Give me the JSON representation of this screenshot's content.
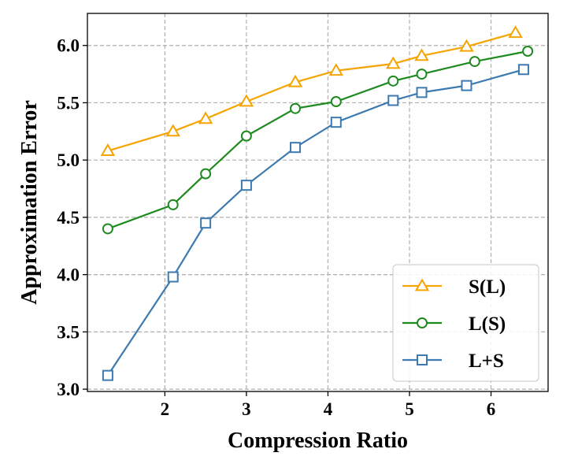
{
  "chart_data": {
    "type": "line",
    "xlabel": "Compression Ratio",
    "ylabel": "Approximation Error",
    "xlim": [
      1.05,
      6.7
    ],
    "ylim": [
      2.98,
      6.28
    ],
    "xticks": [
      "2",
      "3",
      "4",
      "5",
      "6"
    ],
    "yticks": [
      "3.0",
      "3.5",
      "4.0",
      "4.5",
      "5.0",
      "5.5",
      "6.0"
    ],
    "grid": true,
    "legend_position": "bottom-right",
    "series": [
      {
        "name": "S(L)",
        "color": "#f5a400",
        "marker": "triangle",
        "x": [
          1.3,
          2.1,
          2.5,
          3.0,
          3.6,
          4.1,
          4.8,
          5.15,
          5.7,
          6.3
        ],
        "y": [
          5.08,
          5.25,
          5.36,
          5.51,
          5.68,
          5.78,
          5.84,
          5.91,
          5.99,
          6.11
        ]
      },
      {
        "name": "L(S)",
        "color": "#1f8a1f",
        "marker": "circle",
        "x": [
          1.3,
          2.1,
          2.5,
          3.0,
          3.6,
          4.1,
          4.8,
          5.15,
          5.8,
          6.45
        ],
        "y": [
          4.4,
          4.61,
          4.88,
          5.21,
          5.45,
          5.51,
          5.69,
          5.75,
          5.86,
          5.95
        ]
      },
      {
        "name": "L+S",
        "color": "#3d7ab0",
        "marker": "square",
        "x": [
          1.3,
          2.1,
          2.5,
          3.0,
          3.6,
          4.1,
          4.8,
          5.15,
          5.7,
          6.4
        ],
        "y": [
          3.12,
          3.98,
          4.45,
          4.78,
          5.11,
          5.33,
          5.52,
          5.59,
          5.65,
          5.79
        ]
      }
    ]
  }
}
